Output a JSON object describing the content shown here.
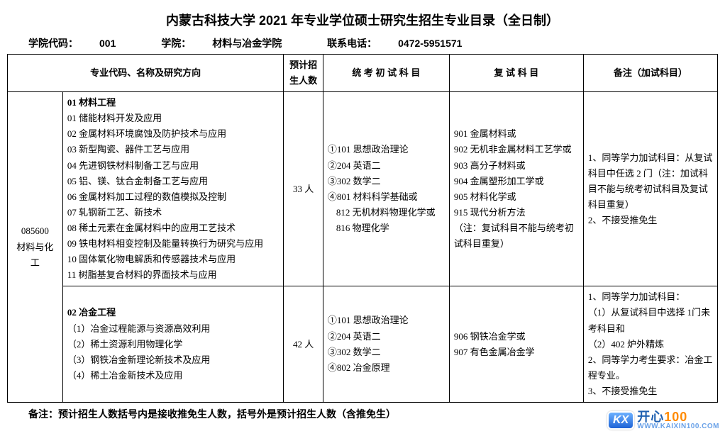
{
  "title": "内蒙古科技大学 2021 年专业学位硕士研究生招生专业目录（全日制）",
  "subhead": {
    "code_label": "学院代码：",
    "code": "001",
    "college_label": "学院：",
    "college": "材料与冶金学院",
    "phone_label": "联系电话：",
    "phone": "0472-5951571"
  },
  "headers": {
    "h1": "专业代码、名称及研究方向",
    "h2": "预计招生人数",
    "h3": "统 考 初 试 科 目",
    "h4": "复 试 科 目",
    "h5": "备注（加试科目）"
  },
  "major": {
    "code": "085600",
    "name": "材料与化工"
  },
  "row1": {
    "dir_title": "01 材料工程",
    "dirs": [
      "01 储能材料开发及应用",
      "02 金属材料环境腐蚀及防护技术与应用",
      "03 新型陶瓷、器件工艺与应用",
      "04 先进钢铁材料制备工艺与应用",
      "05 铝、镁、钛合金制备工艺与应用",
      "06 金属材料加工过程的数值模拟及控制",
      "07 轧钢新工艺、新技术",
      "08 稀土元素在金属材料中的应用工艺技术",
      "09 铁电材料相变控制及能量转换行为研究与应用",
      "10 固体氧化物电解质和传感器技术与应用",
      "11 树脂基复合材料的界面技术与应用"
    ],
    "num": "33 人",
    "exam1": [
      "①101 思想政治理论",
      "②204 英语二",
      "③302 数学二",
      "④801 材料科学基础或"
    ],
    "exam1_sub": [
      "812 无机材料物理化学或",
      "816 物理化学"
    ],
    "exam2": [
      "901 金属材料或",
      "902 无机非金属材料工艺学或",
      "903 高分子材料或",
      "904 金属塑形加工学或",
      "905 材料化学或",
      "915 现代分析方法",
      "（注：复试科目不能与统考初试科目重复）"
    ],
    "notes": [
      "1、同等学力加试科目：从复试科目中任选 2 门（注：加试科目不能与统考初试科目及复试科目重复）",
      "2、不接受推免生"
    ]
  },
  "row2": {
    "dir_title": "02 冶金工程",
    "dirs": [
      "（1）冶金过程能源与资源高效利用",
      "（2）稀土资源利用物理化学",
      "（3）钢铁冶金新理论新技术及应用",
      "（4）稀土冶金新技术及应用"
    ],
    "num": "42 人",
    "exam1": [
      "①101 思想政治理论",
      "②204 英语二",
      "③302 数学二",
      "④802 冶金原理"
    ],
    "exam2": [
      "906 钢铁冶金学或",
      "907 有色金属冶金学"
    ],
    "notes": [
      "1、同等学力加试科目：",
      "（1）从复试科目中选择 1门未考科目和",
      "（2）402 炉外精炼",
      "2、同等学力考生要求：冶金工程专业。",
      "3、不接受推免生"
    ]
  },
  "footer": "备注：预计招生人数括号内是接收推免生人数，括号外是预计招生人数（含推免生）",
  "watermark": {
    "badge": "KX",
    "main1": "开心",
    "main2": "100",
    "url": "WWW.KAIXIN100.COM"
  }
}
